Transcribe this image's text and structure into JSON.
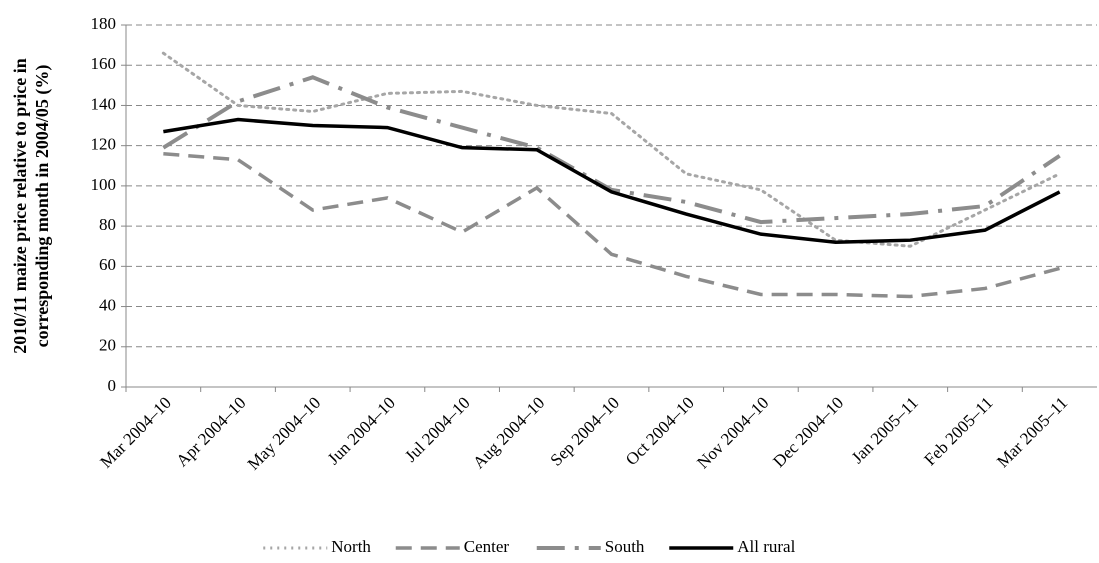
{
  "chart_data": {
    "type": "line",
    "y_label": [
      "2010/11 maize price relative to price in",
      "corresponding month in 2004/05 (%)"
    ],
    "categories": [
      "Mar 2004–10",
      "Apr 2004–10",
      "May 2004–10",
      "Jun 2004–10",
      "Jul 2004–10",
      "Aug 2004–10",
      "Sep 2004–10",
      "Oct 2004–10",
      "Nov 2004–10",
      "Dec 2004–10",
      "Jan 2005–11",
      "Feb 2005–11",
      "Mar 2005–11"
    ],
    "series": [
      {
        "name": "North",
        "color": "#a6a6a6",
        "style": "dotted",
        "values": [
          166,
          140,
          137,
          146,
          147,
          140,
          136,
          106,
          98,
          73,
          70,
          88,
          106
        ]
      },
      {
        "name": "Center",
        "color": "#8c8c8c",
        "style": "dashed",
        "values": [
          116,
          113,
          88,
          94,
          77,
          99,
          66,
          55,
          46,
          46,
          45,
          49,
          59
        ]
      },
      {
        "name": "South",
        "color": "#8c8c8c",
        "style": "dashdot",
        "values": [
          119,
          142,
          154,
          139,
          129,
          119,
          98,
          92,
          82,
          84,
          86,
          90,
          115
        ]
      },
      {
        "name": "All rural",
        "color": "#000000",
        "style": "solid",
        "values": [
          127,
          133,
          130,
          129,
          119,
          118,
          97,
          86,
          76,
          72,
          73,
          78,
          97
        ]
      }
    ],
    "ylim": [
      0,
      180
    ],
    "yticks": [
      0,
      20,
      40,
      60,
      80,
      100,
      120,
      140,
      160,
      180
    ],
    "grid": true,
    "legend": "bottom"
  }
}
